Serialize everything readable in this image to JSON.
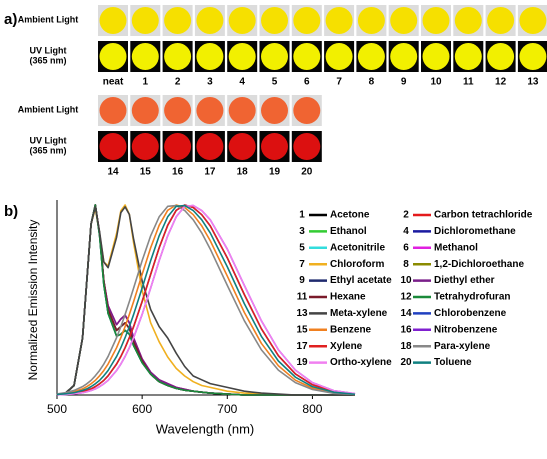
{
  "panel_a": {
    "label": "a)",
    "ambient_label": "Ambient Light",
    "uv_label": [
      "UV Light",
      "(365 nm)"
    ],
    "rows": [
      {
        "samples": [
          "neat",
          "1",
          "2",
          "3",
          "4",
          "5",
          "6",
          "7",
          "8",
          "9",
          "10",
          "11",
          "12",
          "13"
        ],
        "ambient_color": "#f6e000",
        "uv_color": "#f2f000"
      },
      {
        "samples": [
          "14",
          "15",
          "16",
          "17",
          "18",
          "19",
          "20"
        ],
        "ambient_color": "#f06432",
        "uv_color": "#dc1010"
      }
    ]
  },
  "chart_data": {
    "type": "line",
    "panel_label": "b)",
    "x_label": "Wavelength (nm)",
    "y_label": "Normalized Emission Intensity",
    "xlim": [
      500,
      850
    ],
    "xticks": [
      500,
      600,
      700,
      800
    ],
    "ylim": [
      0,
      1
    ],
    "x": [
      500,
      510,
      520,
      530,
      535,
      540,
      545,
      550,
      555,
      560,
      570,
      575,
      580,
      585,
      590,
      600,
      610,
      620,
      630,
      640,
      650,
      660,
      670,
      680,
      700,
      720,
      740,
      760,
      780,
      800,
      825,
      850
    ],
    "series": [
      {
        "id": "1",
        "name": "Acetone",
        "color": "#000000",
        "values": [
          0,
          0.01,
          0.05,
          0.3,
          0.6,
          0.9,
          1,
          0.85,
          0.6,
          0.45,
          0.34,
          0.36,
          0.38,
          0.35,
          0.28,
          0.18,
          0.11,
          0.07,
          0.05,
          0.035,
          0.025,
          0.02,
          0.015,
          0.01,
          0.005,
          0,
          0,
          0,
          0,
          0,
          0,
          0
        ]
      },
      {
        "id": "2",
        "name": "Carbon tetrachloride",
        "color": "#e41a1c",
        "values": [
          0,
          0.01,
          0.05,
          0.3,
          0.6,
          0.9,
          1,
          0.85,
          0.6,
          0.47,
          0.37,
          0.4,
          0.42,
          0.38,
          0.3,
          0.19,
          0.12,
          0.08,
          0.06,
          0.04,
          0.03,
          0.02,
          0.015,
          0.01,
          0.005,
          0,
          0,
          0,
          0,
          0,
          0,
          0
        ]
      },
      {
        "id": "3",
        "name": "Ethanol",
        "color": "#33cc33",
        "values": [
          0,
          0.01,
          0.05,
          0.3,
          0.6,
          0.9,
          1,
          0.84,
          0.58,
          0.43,
          0.31,
          0.32,
          0.34,
          0.32,
          0.26,
          0.17,
          0.11,
          0.07,
          0.05,
          0.035,
          0.025,
          0.02,
          0.015,
          0.01,
          0.005,
          0,
          0,
          0,
          0,
          0,
          0,
          0
        ]
      },
      {
        "id": "4",
        "name": "Dichloromethane",
        "color": "#1a1aa0",
        "values": [
          0,
          0.01,
          0.05,
          0.3,
          0.6,
          0.9,
          1,
          0.85,
          0.6,
          0.45,
          0.34,
          0.36,
          0.38,
          0.35,
          0.28,
          0.18,
          0.11,
          0.07,
          0.05,
          0.035,
          0.025,
          0.02,
          0.015,
          0.01,
          0.005,
          0,
          0,
          0,
          0,
          0,
          0,
          0
        ]
      },
      {
        "id": "5",
        "name": "Acetonitrile",
        "color": "#33dddd",
        "values": [
          0,
          0.01,
          0.05,
          0.3,
          0.6,
          0.9,
          1,
          0.84,
          0.58,
          0.43,
          0.31,
          0.32,
          0.34,
          0.32,
          0.26,
          0.17,
          0.11,
          0.07,
          0.05,
          0.035,
          0.025,
          0.02,
          0.015,
          0.01,
          0.005,
          0,
          0,
          0,
          0,
          0,
          0,
          0
        ]
      },
      {
        "id": "6",
        "name": "Methanol",
        "color": "#e020e0",
        "values": [
          0,
          0.01,
          0.05,
          0.3,
          0.6,
          0.9,
          1,
          0.85,
          0.6,
          0.47,
          0.37,
          0.4,
          0.42,
          0.38,
          0.3,
          0.19,
          0.12,
          0.08,
          0.06,
          0.04,
          0.03,
          0.02,
          0.015,
          0.01,
          0.005,
          0,
          0,
          0,
          0,
          0,
          0,
          0
        ]
      },
      {
        "id": "7",
        "name": "Chloroform",
        "color": "#f0b020",
        "values": [
          0,
          0.01,
          0.05,
          0.3,
          0.6,
          0.9,
          0.98,
          0.85,
          0.7,
          0.68,
          0.85,
          0.97,
          1,
          0.95,
          0.8,
          0.55,
          0.38,
          0.28,
          0.2,
          0.14,
          0.1,
          0.07,
          0.05,
          0.04,
          0.02,
          0.01,
          0.005,
          0,
          0,
          0,
          0,
          0
        ]
      },
      {
        "id": "8",
        "name": "1,2-Dichloroethane",
        "color": "#8b8b00",
        "values": [
          0,
          0.01,
          0.05,
          0.3,
          0.6,
          0.9,
          1,
          0.85,
          0.6,
          0.45,
          0.34,
          0.36,
          0.38,
          0.35,
          0.28,
          0.18,
          0.11,
          0.07,
          0.05,
          0.035,
          0.025,
          0.02,
          0.015,
          0.01,
          0.005,
          0,
          0,
          0,
          0,
          0,
          0,
          0
        ]
      },
      {
        "id": "9",
        "name": "Ethyl acetate",
        "color": "#1f2a6e",
        "values": [
          0,
          0.01,
          0.05,
          0.3,
          0.6,
          0.9,
          1,
          0.84,
          0.58,
          0.43,
          0.31,
          0.32,
          0.34,
          0.32,
          0.26,
          0.17,
          0.11,
          0.07,
          0.05,
          0.035,
          0.025,
          0.02,
          0.015,
          0.01,
          0.005,
          0,
          0,
          0,
          0,
          0,
          0,
          0
        ]
      },
      {
        "id": "10",
        "name": "Diethyl ether",
        "color": "#7a1f8a",
        "values": [
          0,
          0.01,
          0.05,
          0.3,
          0.6,
          0.9,
          1,
          0.85,
          0.6,
          0.47,
          0.37,
          0.4,
          0.42,
          0.38,
          0.3,
          0.19,
          0.12,
          0.08,
          0.06,
          0.04,
          0.03,
          0.02,
          0.015,
          0.01,
          0.005,
          0,
          0,
          0,
          0,
          0,
          0,
          0
        ]
      },
      {
        "id": "11",
        "name": "Hexane",
        "color": "#7a1a2a",
        "values": [
          0,
          0.01,
          0.05,
          0.3,
          0.6,
          0.9,
          1,
          0.85,
          0.6,
          0.45,
          0.34,
          0.36,
          0.38,
          0.35,
          0.28,
          0.18,
          0.11,
          0.07,
          0.05,
          0.035,
          0.025,
          0.02,
          0.015,
          0.01,
          0.005,
          0,
          0,
          0,
          0,
          0,
          0,
          0
        ]
      },
      {
        "id": "12",
        "name": "Tetrahydrofuran",
        "color": "#1a8a3a",
        "values": [
          0,
          0.01,
          0.05,
          0.3,
          0.6,
          0.9,
          1,
          0.84,
          0.58,
          0.43,
          0.31,
          0.32,
          0.34,
          0.32,
          0.26,
          0.17,
          0.11,
          0.07,
          0.05,
          0.035,
          0.025,
          0.02,
          0.015,
          0.01,
          0.005,
          0,
          0,
          0,
          0,
          0,
          0,
          0
        ]
      },
      {
        "id": "13",
        "name": "Meta-xylene",
        "color": "#444444",
        "values": [
          0,
          0.01,
          0.05,
          0.3,
          0.6,
          0.9,
          0.99,
          0.86,
          0.7,
          0.67,
          0.83,
          0.96,
          0.99,
          0.95,
          0.82,
          0.6,
          0.45,
          0.36,
          0.3,
          0.22,
          0.15,
          0.1,
          0.08,
          0.06,
          0.04,
          0.02,
          0.01,
          0.005,
          0,
          0,
          0,
          0
        ]
      },
      {
        "id": "14",
        "name": "Chlorobenzene",
        "color": "#2040c0",
        "values": [
          0.002,
          0.004,
          0.008,
          0.017,
          0.024,
          0.032,
          0.044,
          0.059,
          0.077,
          0.101,
          0.163,
          0.203,
          0.249,
          0.302,
          0.36,
          0.492,
          0.635,
          0.775,
          0.893,
          0.972,
          1,
          0.987,
          0.949,
          0.89,
          0.722,
          0.529,
          0.349,
          0.207,
          0.111,
          0.054,
          0.019,
          0.005
        ]
      },
      {
        "id": "15",
        "name": "Benzene",
        "color": "#f08020",
        "values": [
          0.004,
          0.008,
          0.017,
          0.032,
          0.044,
          0.059,
          0.077,
          0.101,
          0.129,
          0.163,
          0.249,
          0.302,
          0.36,
          0.424,
          0.492,
          0.635,
          0.775,
          0.893,
          0.972,
          1,
          0.987,
          0.949,
          0.89,
          0.812,
          0.626,
          0.435,
          0.272,
          0.154,
          0.078,
          0.036,
          0.012,
          0.003
        ]
      },
      {
        "id": "16",
        "name": "Nitrobenzene",
        "color": "#8020d0",
        "values": [
          0.001,
          0.003,
          0.006,
          0.012,
          0.017,
          0.024,
          0.032,
          0.044,
          0.059,
          0.077,
          0.129,
          0.163,
          0.203,
          0.249,
          0.302,
          0.424,
          0.563,
          0.707,
          0.838,
          0.938,
          0.993,
          0.997,
          0.971,
          0.922,
          0.768,
          0.577,
          0.391,
          0.238,
          0.131,
          0.065,
          0.023,
          0.007
        ]
      },
      {
        "id": "17",
        "name": "Xylene",
        "color": "#e02020",
        "values": [
          0.002,
          0.004,
          0.008,
          0.017,
          0.024,
          0.032,
          0.044,
          0.059,
          0.077,
          0.101,
          0.163,
          0.203,
          0.249,
          0.302,
          0.36,
          0.492,
          0.635,
          0.775,
          0.893,
          0.972,
          1,
          0.987,
          0.949,
          0.89,
          0.722,
          0.529,
          0.349,
          0.207,
          0.111,
          0.054,
          0.019,
          0.005
        ]
      },
      {
        "id": "18",
        "name": "Para-xylene",
        "color": "#888888",
        "values": [
          0.006,
          0.012,
          0.024,
          0.044,
          0.059,
          0.077,
          0.101,
          0.129,
          0.163,
          0.203,
          0.302,
          0.36,
          0.424,
          0.492,
          0.563,
          0.707,
          0.838,
          0.938,
          0.993,
          0.997,
          0.971,
          0.922,
          0.853,
          0.768,
          0.577,
          0.391,
          0.238,
          0.131,
          0.065,
          0.029,
          0.009,
          0.003
        ]
      },
      {
        "id": "19",
        "name": "Ortho-xylene",
        "color": "#f080f0",
        "values": [
          0.001,
          0.003,
          0.006,
          0.012,
          0.017,
          0.024,
          0.032,
          0.044,
          0.059,
          0.077,
          0.129,
          0.163,
          0.203,
          0.249,
          0.302,
          0.424,
          0.563,
          0.707,
          0.838,
          0.938,
          0.993,
          0.997,
          0.971,
          0.922,
          0.768,
          0.577,
          0.391,
          0.238,
          0.131,
          0.065,
          0.023,
          0.007
        ]
      },
      {
        "id": "20",
        "name": "Toluene",
        "color": "#108080",
        "values": [
          0.003,
          0.006,
          0.012,
          0.024,
          0.032,
          0.044,
          0.059,
          0.077,
          0.101,
          0.129,
          0.203,
          0.249,
          0.302,
          0.36,
          0.424,
          0.563,
          0.707,
          0.838,
          0.938,
          0.993,
          0.997,
          0.971,
          0.922,
          0.853,
          0.675,
          0.481,
          0.309,
          0.179,
          0.094,
          0.044,
          0.015,
          0.004
        ]
      }
    ]
  }
}
